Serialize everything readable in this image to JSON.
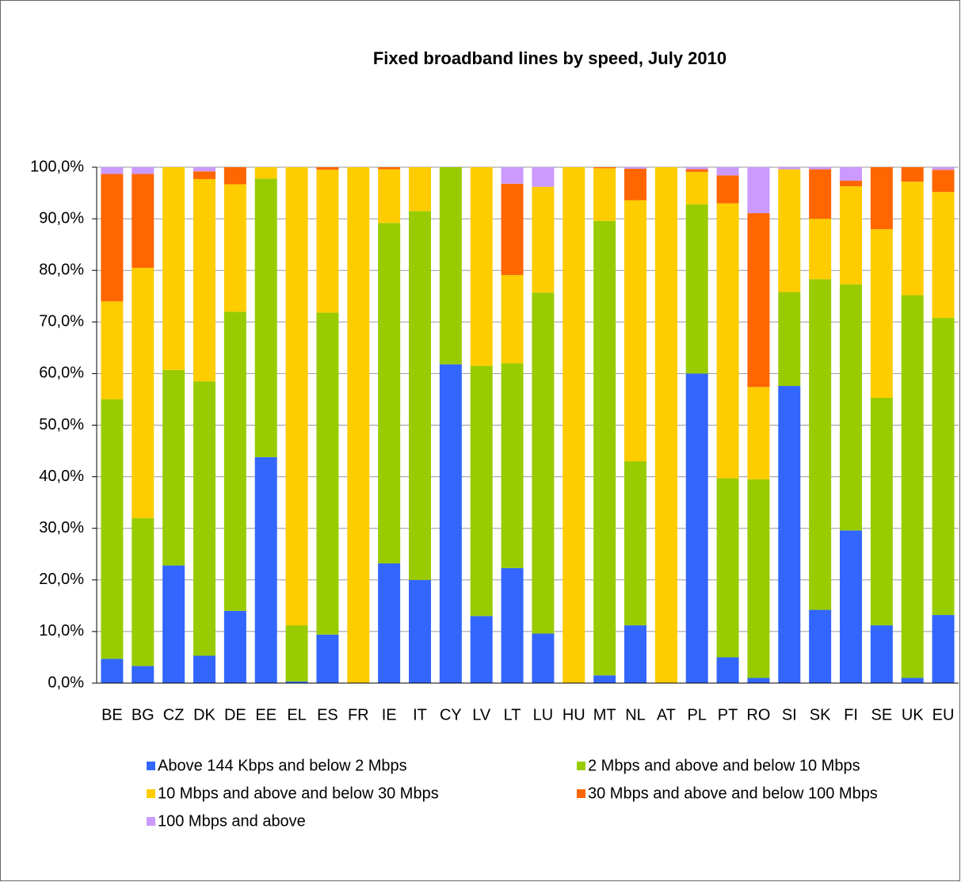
{
  "chart_data": {
    "type": "stacked_bar",
    "title": "Fixed broadband lines by speed, July 2010",
    "categories": [
      "BE",
      "BG",
      "CZ",
      "DK",
      "DE",
      "EE",
      "EL",
      "ES",
      "FR",
      "IE",
      "IT",
      "CY",
      "LV",
      "LT",
      "LU",
      "HU",
      "MT",
      "NL",
      "AT",
      "PL",
      "PT",
      "RO",
      "SI",
      "SK",
      "FI",
      "SE",
      "UK",
      "EU"
    ],
    "series": [
      {
        "name": "Above 144 Kbps and below 2 Mbps",
        "color": "#3366ff",
        "values": [
          4.7,
          3.3,
          22.8,
          5.3,
          14,
          43.8,
          0.3,
          9.4,
          0,
          23.2,
          20,
          61.8,
          13,
          22.3,
          9.6,
          0,
          1.5,
          11.2,
          0,
          60,
          5,
          1,
          57.6,
          14.2,
          29.6,
          11.2,
          1,
          13.2
        ]
      },
      {
        "name": "2 Mbps and above and below 10 Mbps",
        "color": "#99cc00",
        "values": [
          50.3,
          28.7,
          37.9,
          53.2,
          58,
          54,
          10.9,
          62.4,
          0,
          66,
          71.5,
          38.2,
          48.5,
          39.7,
          66.1,
          0,
          88.1,
          31.8,
          0,
          32.8,
          34.7,
          38.5,
          18.2,
          64.1,
          47.7,
          44.1,
          74.2,
          57.6
        ]
      },
      {
        "name": "10 Mbps and above and below 30 Mbps",
        "color": "#ffcc00",
        "values": [
          19,
          48.5,
          39.3,
          39.2,
          24.7,
          2.2,
          88.8,
          27.7,
          100,
          10.4,
          8.5,
          0,
          38.5,
          17.1,
          20.5,
          100,
          10.2,
          50.6,
          100,
          6.3,
          53.3,
          17.9,
          23.8,
          11.7,
          19,
          32.7,
          22,
          24.4
        ]
      },
      {
        "name": "30 Mbps and above and below 100 Mbps",
        "color": "#ff6600",
        "values": [
          24.7,
          18.2,
          0,
          1.5,
          3.3,
          0,
          0,
          0.5,
          0,
          0.4,
          0,
          0,
          0,
          17.7,
          0,
          0,
          0.2,
          6.1,
          0,
          0.5,
          5.4,
          33.7,
          0,
          9.6,
          1.1,
          12,
          2.8,
          4.3
        ]
      },
      {
        "name": "100 Mbps and above",
        "color": "#cc99ff",
        "values": [
          1.3,
          1.3,
          0,
          0.8,
          0,
          0,
          0,
          0,
          0,
          0,
          0,
          0,
          0,
          3.2,
          3.8,
          0,
          0,
          0.3,
          0,
          0.4,
          1.6,
          8.9,
          0.4,
          0.4,
          2.6,
          0,
          0,
          0.5
        ]
      }
    ],
    "ylim": [
      0,
      100
    ],
    "yticks": [
      {
        "value": 0,
        "label": "0,0%"
      },
      {
        "value": 10,
        "label": "10,0%"
      },
      {
        "value": 20,
        "label": "20,0%"
      },
      {
        "value": 30,
        "label": "30,0%"
      },
      {
        "value": 40,
        "label": "40,0%"
      },
      {
        "value": 50,
        "label": "50,0%"
      },
      {
        "value": 60,
        "label": "60,0%"
      },
      {
        "value": 70,
        "label": "70,0%"
      },
      {
        "value": 80,
        "label": "80,0%"
      },
      {
        "value": 90,
        "label": "90,0%"
      },
      {
        "value": 100,
        "label": "100,0%"
      }
    ],
    "grid": true,
    "legend": "bottom"
  }
}
